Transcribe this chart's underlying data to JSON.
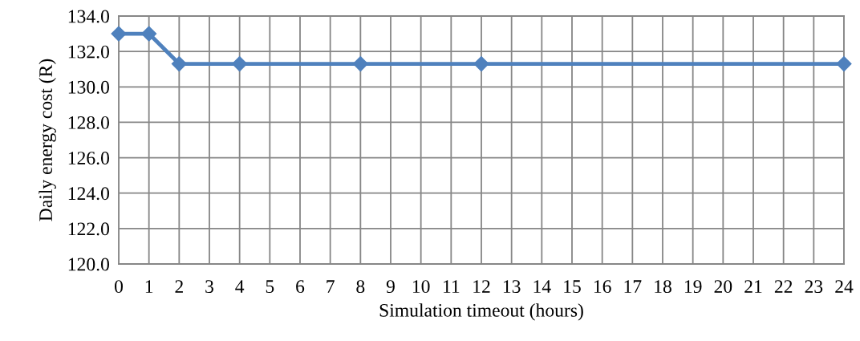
{
  "chart_data": {
    "type": "line",
    "xlabel": "Simulation timeout (hours)",
    "ylabel": "Daily energy cost (R)",
    "x": [
      0,
      1,
      2,
      4,
      8,
      12,
      24
    ],
    "series": [
      {
        "color": "#4f81bd",
        "values": [
          133.0,
          133.0,
          131.3,
          131.3,
          131.3,
          131.3,
          131.3
        ]
      }
    ],
    "xlim": [
      0,
      24
    ],
    "xticks": [
      0,
      1,
      2,
      3,
      4,
      5,
      6,
      7,
      8,
      9,
      10,
      11,
      12,
      13,
      14,
      15,
      16,
      17,
      18,
      19,
      20,
      21,
      22,
      23,
      24
    ],
    "ylim": [
      120,
      134
    ],
    "yticks": [
      {
        "value": 120,
        "label": "120.0"
      },
      {
        "value": 122,
        "label": "122.0"
      },
      {
        "value": 124,
        "label": "124.0"
      },
      {
        "value": 126,
        "label": "126.0"
      },
      {
        "value": 128,
        "label": "128.0"
      },
      {
        "value": 130,
        "label": "130.0"
      },
      {
        "value": 132,
        "label": "132.0"
      },
      {
        "value": 134,
        "label": "134.0"
      }
    ],
    "grid": true,
    "marker": "diamond",
    "line_style": "solid"
  }
}
